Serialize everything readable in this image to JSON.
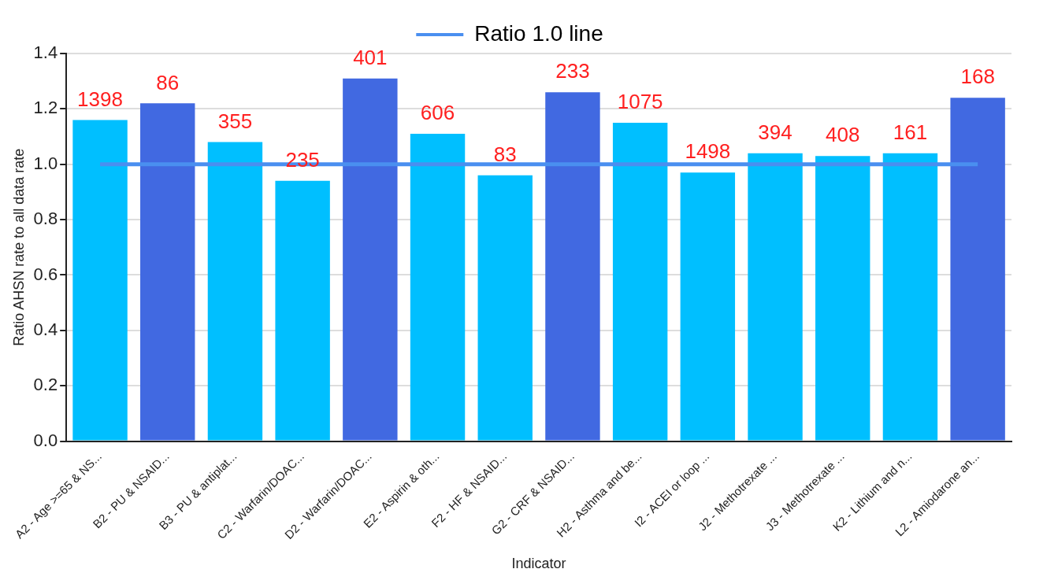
{
  "chart_data": {
    "type": "bar",
    "xlabel": "Indicator",
    "ylabel": "Ratio AHSN rate to all data rate",
    "categories": [
      "A2 - Age >=65 & NS...",
      "B2 - PU & NSAID...",
      "B3 - PU & antiplat...",
      "C2 - Warfarin/DOAC...",
      "D2 - Warfarin/DOAC...",
      "E2 - Aspirin & oth...",
      "F2 - HF & NSAID...",
      "G2 - CRF & NSAID...",
      "H2 - Asthma and be...",
      "I2 - ACEI or loop ...",
      "J2 - Methotrexate ...",
      "J3 - Methotrexate ...",
      "K2 - Lithium and n...",
      "L2 - Amiodarone an..."
    ],
    "series": [
      {
        "values": [
          1.16,
          1.22,
          1.08,
          0.94,
          1.31,
          1.11,
          0.96,
          1.26,
          1.15,
          0.97,
          1.04,
          1.03,
          1.04,
          1.24
        ],
        "colors": [
          "#00bfff",
          "#4169e1",
          "#00bfff",
          "#00bfff",
          "#4169e1",
          "#00bfff",
          "#00bfff",
          "#4169e1",
          "#00bfff",
          "#00bfff",
          "#00bfff",
          "#00bfff",
          "#00bfff",
          "#4169e1"
        ]
      },
      {
        "type": "line",
        "name": "Ratio 1.0 line",
        "color": "#4a8ff0",
        "values": [
          1.0,
          1.0,
          1.0,
          1.0,
          1.0,
          1.0,
          1.0,
          1.0,
          1.0,
          1.0,
          1.0,
          1.0,
          1.0,
          1.0
        ]
      }
    ],
    "annotations": [
      {
        "text": "1398",
        "x": "A2 - Age >=65 & NS...",
        "y": 1.16
      },
      {
        "text": "86",
        "x": "B2 - PU & NSAID...",
        "y": 1.22
      },
      {
        "text": "355",
        "x": "B3 - PU & antiplat...",
        "y": 1.08
      },
      {
        "text": "235",
        "x": "C2 - Warfarin/DOAC...",
        "y": 0.94
      },
      {
        "text": "401",
        "x": "D2 - Warfarin/DOAC...",
        "y": 1.31
      },
      {
        "text": "606",
        "x": "E2 - Aspirin & oth...",
        "y": 1.11
      },
      {
        "text": "83",
        "x": "F2 - HF & NSAID...",
        "y": 0.96
      },
      {
        "text": "233",
        "x": "G2 - CRF & NSAID...",
        "y": 1.26
      },
      {
        "text": "1075",
        "x": "H2 - Asthma and be...",
        "y": 1.15
      },
      {
        "text": "1498",
        "x": "I2 - ACEI or loop ...",
        "y": 0.97
      },
      {
        "text": "394",
        "x": "J2 - Methotrexate ...",
        "y": 1.04
      },
      {
        "text": "408",
        "x": "J3 - Methotrexate ...",
        "y": 1.03
      },
      {
        "text": "161",
        "x": "K2 - Lithium and n...",
        "y": 1.04
      },
      {
        "text": "168",
        "x": "L2 - Amiodarone an...",
        "y": 1.24
      }
    ],
    "ylim": [
      0,
      1.4
    ],
    "yticks": [
      {
        "value": 0,
        "label": "0.0"
      },
      0.2,
      0.4,
      0.6,
      0.8,
      {
        "value": 1,
        "label": "1.0"
      },
      1.2,
      1.4
    ],
    "grid": "y",
    "legend": "top",
    "marker": "none"
  }
}
